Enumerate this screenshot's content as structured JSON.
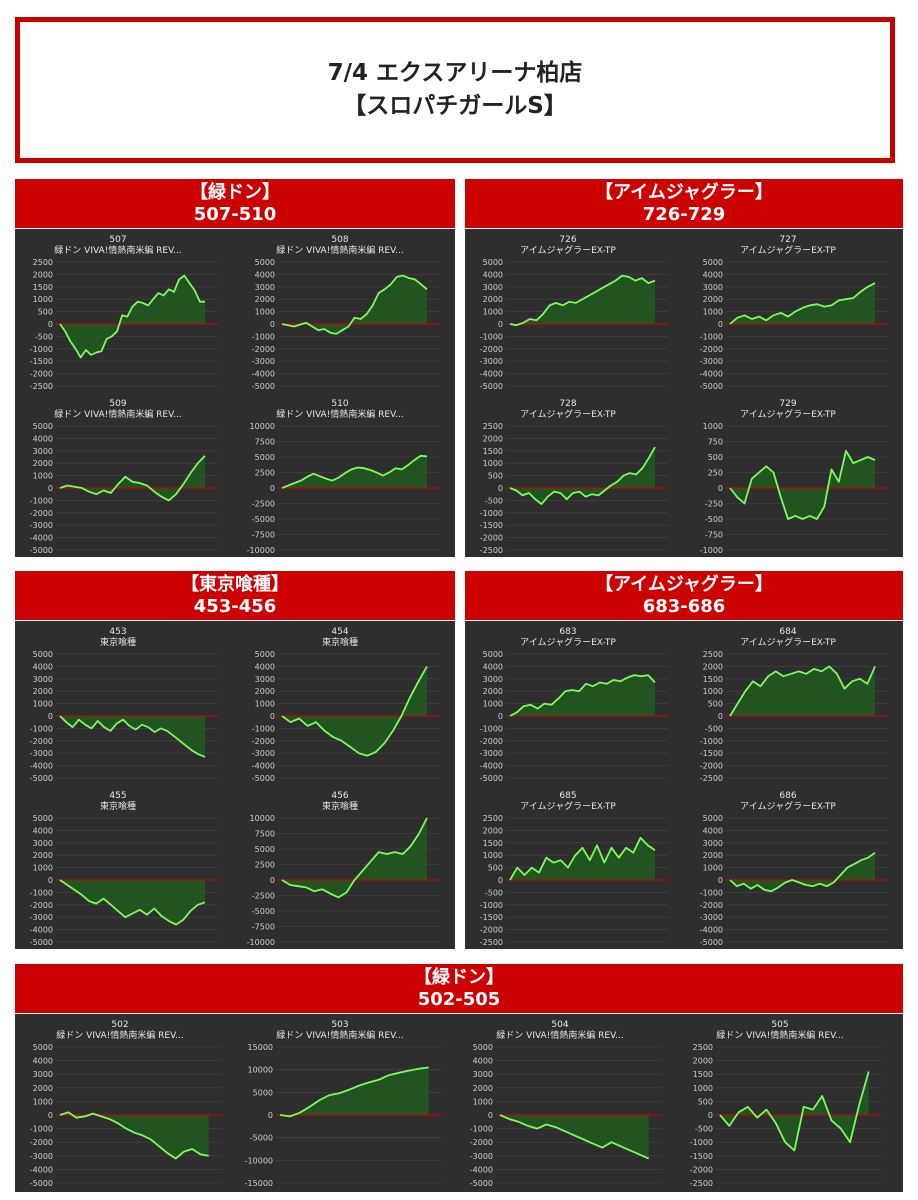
{
  "page_title": {
    "line1": "7/4 エクスアリーナ柏店",
    "line2": "【スロパチガールS】"
  },
  "colors": {
    "red": "#cc0000",
    "panel_bg": "#2e2e2e",
    "line": "#7CFC5A",
    "fill": "#1f5a1f",
    "zero_line": "#d40000"
  },
  "sections": [
    {
      "name": "【緑ドン】",
      "range": "507-510"
    },
    {
      "name": "【アイムジャグラー】",
      "range": "726-729"
    },
    {
      "name": "【東京喰種】",
      "range": "453-456"
    },
    {
      "name": "【アイムジャグラー】",
      "range": "683-686"
    },
    {
      "name": "【緑ドン】",
      "range": "502-505"
    }
  ],
  "chart_data": [
    {
      "type": "area",
      "machine": "507",
      "title": "緑ドン VIVA!情熱南米編 REV...",
      "ylim": [
        -2500,
        2500
      ],
      "yticks": [
        2500,
        2000,
        1500,
        1000,
        500,
        0,
        -500,
        -1000,
        -1500,
        -2000,
        -2500
      ],
      "values": [
        0,
        -300,
        -700,
        -1000,
        -1350,
        -1050,
        -1250,
        -1150,
        -1100,
        -600,
        -500,
        -300,
        350,
        300,
        700,
        900,
        850,
        750,
        1000,
        1250,
        1150,
        1400,
        1300,
        1800,
        1950,
        1650,
        1350,
        900,
        900
      ]
    },
    {
      "type": "area",
      "machine": "508",
      "title": "緑ドン VIVA!情熱南米編 REV...",
      "ylim": [
        -5000,
        5000
      ],
      "yticks": [
        5000,
        4000,
        3000,
        2000,
        1000,
        0,
        -1000,
        -2000,
        -3000,
        -4000,
        -5000
      ],
      "values": [
        0,
        -100,
        -200,
        -50,
        100,
        -200,
        -500,
        -400,
        -700,
        -800,
        -500,
        -200,
        500,
        400,
        800,
        1500,
        2500,
        2800,
        3200,
        3800,
        3900,
        3700,
        3600,
        3200,
        2800
      ]
    },
    {
      "type": "area",
      "machine": "509",
      "title": "緑ドン VIVA!情熱南米編 REV...",
      "ylim": [
        -5000,
        5000
      ],
      "yticks": [
        5000,
        4000,
        3000,
        2000,
        1000,
        0,
        -1000,
        -2000,
        -3000,
        -4000,
        -5000
      ],
      "values": [
        0,
        200,
        100,
        0,
        -300,
        -500,
        -200,
        -400,
        300,
        900,
        500,
        400,
        200,
        -300,
        -700,
        -1000,
        -500,
        300,
        1200,
        2000,
        2600
      ]
    },
    {
      "type": "area",
      "machine": "510",
      "title": "緑ドン VIVA!情熱南米編 REV...",
      "ylim": [
        -10000,
        10000
      ],
      "yticks": [
        10000,
        7500,
        5000,
        2500,
        0,
        -2500,
        -5000,
        -7500,
        -10000
      ],
      "values": [
        0,
        400,
        800,
        1200,
        1800,
        2300,
        1900,
        1500,
        1200,
        1700,
        2400,
        3000,
        3300,
        3200,
        2900,
        2500,
        2000,
        2500,
        3200,
        3000,
        3700,
        4500,
        5200,
        5100
      ]
    },
    {
      "type": "area",
      "machine": "726",
      "title": "アイムジャグラーEX-TP",
      "ylim": [
        -5000,
        5000
      ],
      "yticks": [
        5000,
        4000,
        3000,
        2000,
        1000,
        0,
        -1000,
        -2000,
        -3000,
        -4000,
        -5000
      ],
      "values": [
        0,
        -100,
        100,
        400,
        300,
        800,
        1500,
        1700,
        1500,
        1800,
        1700,
        2000,
        2300,
        2600,
        2900,
        3200,
        3500,
        3900,
        3800,
        3500,
        3700,
        3300,
        3500
      ]
    },
    {
      "type": "area",
      "machine": "727",
      "title": "アイムジャグラーEX-TP",
      "ylim": [
        -5000,
        5000
      ],
      "yticks": [
        5000,
        4000,
        3000,
        2000,
        1000,
        0,
        -1000,
        -2000,
        -3000,
        -4000,
        -5000
      ],
      "values": [
        0,
        500,
        700,
        400,
        600,
        300,
        700,
        900,
        600,
        1000,
        1300,
        1500,
        1600,
        1400,
        1500,
        1900,
        2000,
        2100,
        2600,
        3000,
        3300
      ]
    },
    {
      "type": "area",
      "machine": "728",
      "title": "アイムジャグラーEX-TP",
      "ylim": [
        -2500,
        2500
      ],
      "yticks": [
        2500,
        2000,
        1500,
        1000,
        500,
        0,
        -500,
        -1000,
        -1500,
        -2000,
        -2500
      ],
      "values": [
        0,
        -100,
        -300,
        -200,
        -450,
        -650,
        -350,
        -150,
        -200,
        -450,
        -200,
        -150,
        -350,
        -250,
        -300,
        -100,
        100,
        250,
        500,
        600,
        550,
        800,
        1200,
        1650
      ]
    },
    {
      "type": "area",
      "machine": "729",
      "title": "アイムジャグラーEX-TP",
      "ylim": [
        -1000,
        1000
      ],
      "yticks": [
        1000,
        750,
        500,
        250,
        0,
        -250,
        -500,
        -750,
        -1000
      ],
      "values": [
        0,
        -150,
        -250,
        150,
        250,
        350,
        250,
        -150,
        -500,
        -450,
        -500,
        -450,
        -500,
        -300,
        300,
        100,
        600,
        400,
        450,
        500,
        450
      ]
    },
    {
      "type": "area",
      "machine": "453",
      "title": "東京喰種",
      "ylim": [
        -5000,
        5000
      ],
      "yticks": [
        5000,
        4000,
        3000,
        2000,
        1000,
        0,
        -1000,
        -2000,
        -3000,
        -4000,
        -5000
      ],
      "values": [
        0,
        -500,
        -900,
        -300,
        -700,
        -1000,
        -400,
        -900,
        -1200,
        -600,
        -300,
        -800,
        -1100,
        -700,
        -900,
        -1300,
        -1000,
        -1200,
        -1600,
        -2000,
        -2400,
        -2800,
        -3100,
        -3300
      ]
    },
    {
      "type": "area",
      "machine": "454",
      "title": "東京喰種",
      "ylim": [
        -5000,
        5000
      ],
      "yticks": [
        5000,
        4000,
        3000,
        2000,
        1000,
        0,
        -1000,
        -2000,
        -3000,
        -4000,
        -5000
      ],
      "values": [
        0,
        -500,
        -200,
        -800,
        -500,
        -1200,
        -1700,
        -2000,
        -2500,
        -3000,
        -3200,
        -2900,
        -2200,
        -1200,
        0,
        1500,
        2800,
        4000
      ]
    },
    {
      "type": "area",
      "machine": "455",
      "title": "東京喰種",
      "ylim": [
        -5000,
        5000
      ],
      "yticks": [
        5000,
        4000,
        3000,
        2000,
        1000,
        0,
        -1000,
        -2000,
        -3000,
        -4000,
        -5000
      ],
      "values": [
        0,
        -400,
        -800,
        -1200,
        -1700,
        -1900,
        -1500,
        -2000,
        -2500,
        -3000,
        -2700,
        -2400,
        -2800,
        -2300,
        -2900,
        -3300,
        -3600,
        -3200,
        -2500,
        -2000,
        -1800
      ]
    },
    {
      "type": "area",
      "machine": "456",
      "title": "東京喰種",
      "ylim": [
        -10000,
        10000
      ],
      "yticks": [
        10000,
        7500,
        5000,
        2500,
        0,
        -2500,
        -5000,
        -7500,
        -10000
      ],
      "values": [
        0,
        -800,
        -1000,
        -1200,
        -1800,
        -1500,
        -2200,
        -2800,
        -2000,
        0,
        1500,
        3000,
        4500,
        4200,
        4500,
        4200,
        5500,
        7500,
        10000
      ]
    },
    {
      "type": "area",
      "machine": "683",
      "title": "アイムジャグラーEX-TP",
      "ylim": [
        -5000,
        5000
      ],
      "yticks": [
        5000,
        4000,
        3000,
        2000,
        1000,
        0,
        -1000,
        -2000,
        -3000,
        -4000,
        -5000
      ],
      "values": [
        0,
        300,
        800,
        900,
        600,
        1000,
        900,
        1400,
        2000,
        2100,
        2000,
        2600,
        2400,
        2700,
        2600,
        2900,
        2800,
        3100,
        3300,
        3200,
        3300,
        2700
      ]
    },
    {
      "type": "area",
      "machine": "684",
      "title": "アイムジャグラーEX-TP",
      "ylim": [
        -2500,
        2500
      ],
      "yticks": [
        2500,
        2000,
        1500,
        1000,
        500,
        0,
        -500,
        -1000,
        -1500,
        -2000,
        -2500
      ],
      "values": [
        0,
        500,
        1000,
        1400,
        1200,
        1600,
        1800,
        1600,
        1700,
        1800,
        1700,
        1900,
        1800,
        2000,
        1700,
        1100,
        1400,
        1500,
        1300,
        2000
      ]
    },
    {
      "type": "area",
      "machine": "685",
      "title": "アイムジャグラーEX-TP",
      "ylim": [
        -2500,
        2500
      ],
      "yticks": [
        2500,
        2000,
        1500,
        1000,
        500,
        0,
        -500,
        -1000,
        -1500,
        -2000,
        -2500
      ],
      "values": [
        0,
        500,
        200,
        500,
        300,
        900,
        700,
        800,
        500,
        1000,
        1300,
        800,
        1400,
        700,
        1300,
        900,
        1300,
        1100,
        1700,
        1400,
        1200
      ]
    },
    {
      "type": "area",
      "machine": "686",
      "title": "アイムジャグラーEX-TP",
      "ylim": [
        -5000,
        5000
      ],
      "yticks": [
        5000,
        4000,
        3000,
        2000,
        1000,
        0,
        -1000,
        -2000,
        -3000,
        -4000,
        -5000
      ],
      "values": [
        0,
        -500,
        -300,
        -700,
        -400,
        -800,
        -900,
        -600,
        -200,
        0,
        -200,
        -400,
        -500,
        -300,
        -500,
        -200,
        400,
        1000,
        1300,
        1600,
        1800,
        2200
      ]
    },
    {
      "type": "area",
      "machine": "502",
      "title": "緑ドン VIVA!情熱南米編 REV...",
      "ylim": [
        -5000,
        5000
      ],
      "yticks": [
        5000,
        4000,
        3000,
        2000,
        1000,
        0,
        -1000,
        -2000,
        -3000,
        -4000,
        -5000
      ],
      "values": [
        0,
        200,
        -200,
        -100,
        100,
        -100,
        -300,
        -600,
        -1000,
        -1300,
        -1500,
        -1800,
        -2300,
        -2800,
        -3200,
        -2700,
        -2500,
        -2900,
        -3000
      ]
    },
    {
      "type": "area",
      "machine": "503",
      "title": "緑ドン VIVA!情熱南米編 REV...",
      "ylim": [
        -15000,
        15000
      ],
      "yticks": [
        15000,
        10000,
        5000,
        0,
        -5000,
        -10000,
        -15000
      ],
      "values": [
        0,
        -300,
        500,
        1800,
        3300,
        4400,
        4800,
        5600,
        6500,
        7200,
        7800,
        8800,
        9300,
        9800,
        10200,
        10500
      ]
    },
    {
      "type": "area",
      "machine": "504",
      "title": "緑ドン VIVA!情熱南米編 REV...",
      "ylim": [
        -5000,
        5000
      ],
      "yticks": [
        5000,
        4000,
        3000,
        2000,
        1000,
        0,
        -1000,
        -2000,
        -3000,
        -4000,
        -5000
      ],
      "values": [
        0,
        -300,
        -500,
        -800,
        -1000,
        -700,
        -900,
        -1200,
        -1500,
        -1800,
        -2100,
        -2400,
        -2000,
        -2300,
        -2600,
        -2900,
        -3200
      ]
    },
    {
      "type": "area",
      "machine": "505",
      "title": "緑ドン VIVA!情熱南米編 REV...",
      "ylim": [
        -2500,
        2500
      ],
      "yticks": [
        2500,
        2000,
        1500,
        1000,
        500,
        0,
        -500,
        -1000,
        -1500,
        -2000,
        -2500
      ],
      "values": [
        0,
        -400,
        100,
        300,
        -100,
        200,
        -300,
        -1000,
        -1300,
        300,
        200,
        700,
        -200,
        -500,
        -1000,
        400,
        1600
      ]
    }
  ]
}
